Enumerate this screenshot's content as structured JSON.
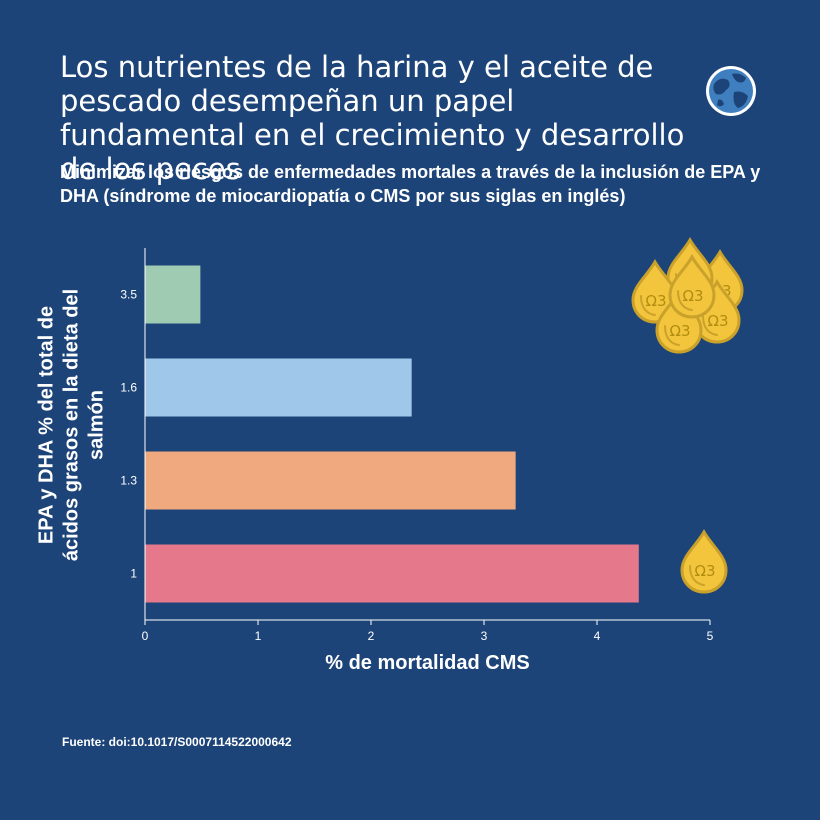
{
  "header": {
    "title": "Los nutrientes de la harina y el aceite de pescado desempeñan un papel fundamental en el crecimiento y desarrollo de los peces",
    "subtitle": "Minimizar los riesgos de enfermedades mortales a través de la inclusión de EPA y DHA (síndrome de miocardiopatía o CMS por sus siglas en inglés)",
    "logo_icon": "globe-icon"
  },
  "footer": {
    "source": "Fuente: doi:10.1017/S0007114522000642"
  },
  "decorations": {
    "drop_icon": "omega3-drop-icon",
    "drop_label": "Ω3"
  },
  "chart_data": {
    "type": "bar",
    "orientation": "horizontal",
    "categories": [
      "3.5",
      "1.6",
      "1.3",
      "1"
    ],
    "values": [
      0.49,
      2.36,
      3.28,
      4.37
    ],
    "colors": [
      "#9ecbb2",
      "#9fc7e9",
      "#f0a97e",
      "#e6788b"
    ],
    "xlabel": "% de mortalidad CMS",
    "ylabel": "EPA y DHA % del total de ácidos grasos en la dieta del salmón",
    "xlim": [
      0,
      5
    ],
    "xticks": [
      "0",
      "1",
      "2",
      "3",
      "4",
      "5"
    ],
    "grid": false,
    "legend": "none"
  }
}
